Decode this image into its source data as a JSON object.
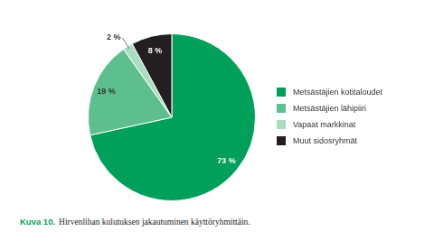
{
  "chart_data": {
    "type": "pie",
    "figure_number": "Kuva 10.",
    "title": "Hirvenlihan kulutuksen jakautuminen käyttöryhmittäin.",
    "categories": [
      "Metsästäjien kotitaloudet",
      "Metsästäjien lähipiiri",
      "Vapaat markkinat",
      "Muut sidosryhmät"
    ],
    "values": [
      73,
      19,
      2,
      8
    ],
    "value_labels": [
      "73 %",
      "19 %",
      "2 %",
      "8 %"
    ],
    "colors": [
      "#00a05a",
      "#5dbf8d",
      "#a9dcc0",
      "#231f20"
    ],
    "data_labels": true,
    "legend": "right"
  }
}
